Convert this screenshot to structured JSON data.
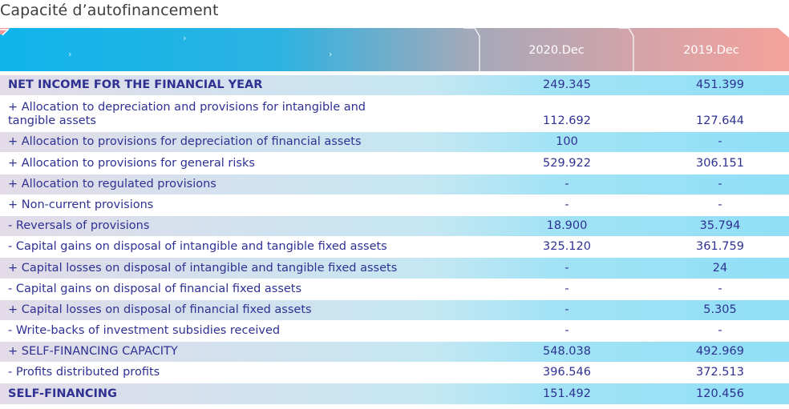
{
  "title": "Capacité d’autofinancement",
  "columns": [
    "2020.Dec",
    "2019.Dec"
  ],
  "colors": {
    "text": "#2e3192",
    "title": "#3d3d3d",
    "header_left": "#1ab5e6",
    "header_mid": "#a9a9b8",
    "header_right": "#f3a09b",
    "row_highlight": "#8fdff6"
  },
  "rows": [
    {
      "label": "NET INCOME FOR THE FINANCIAL YEAR",
      "v2020": "249.345",
      "v2019": "451.399",
      "bold": true,
      "highlight": true
    },
    {
      "label": "+ Allocation to depreciation and provisions for intangible and tangible assets",
      "v2020": "112.692",
      "v2019": "127.644",
      "bold": false,
      "highlight": false
    },
    {
      "label": "+ Allocation to provisions for depreciation of financial assets",
      "v2020": "100",
      "v2019": "-",
      "bold": false,
      "highlight": true
    },
    {
      "label": "+ Allocation to provisions for general risks",
      "v2020": "529.922",
      "v2019": "306.151",
      "bold": false,
      "highlight": false
    },
    {
      "label": "+ Allocation to regulated provisions",
      "v2020": "-",
      "v2019": "-",
      "bold": false,
      "highlight": true
    },
    {
      "label": "+ Non-current provisions",
      "v2020": "-",
      "v2019": "-",
      "bold": false,
      "highlight": false
    },
    {
      "label": "- Reversals of provisions",
      "v2020": "18.900",
      "v2019": "35.794",
      "bold": false,
      "highlight": true
    },
    {
      "label": "- Capital gains on disposal of intangible and tangible fixed assets",
      "v2020": "325.120",
      "v2019": "361.759",
      "bold": false,
      "highlight": false
    },
    {
      "label": "+ Capital losses on disposal of intangible and tangible fixed assets",
      "v2020": "-",
      "v2019": "24",
      "bold": false,
      "highlight": true
    },
    {
      "label": "- Capital gains on disposal of financial fixed assets",
      "v2020": "-",
      "v2019": "-",
      "bold": false,
      "highlight": false
    },
    {
      "label": "+ Capital losses on disposal of financial fixed assets",
      "v2020": "-",
      "v2019": "5.305",
      "bold": false,
      "highlight": true
    },
    {
      "label": "- Write-backs of investment subsidies received",
      "v2020": "-",
      "v2019": "-",
      "bold": false,
      "highlight": false
    },
    {
      "label": "+ SELF-FINANCING CAPACITY",
      "v2020": "548.038",
      "v2019": "492.969",
      "bold": false,
      "highlight": true
    },
    {
      "label": "- Profits distributed profits",
      "v2020": "396.546",
      "v2019": "372.513",
      "bold": false,
      "highlight": false
    },
    {
      "label": "SELF-FINANCING",
      "v2020": "151.492",
      "v2019": "120.456",
      "bold": true,
      "highlight": true
    }
  ]
}
